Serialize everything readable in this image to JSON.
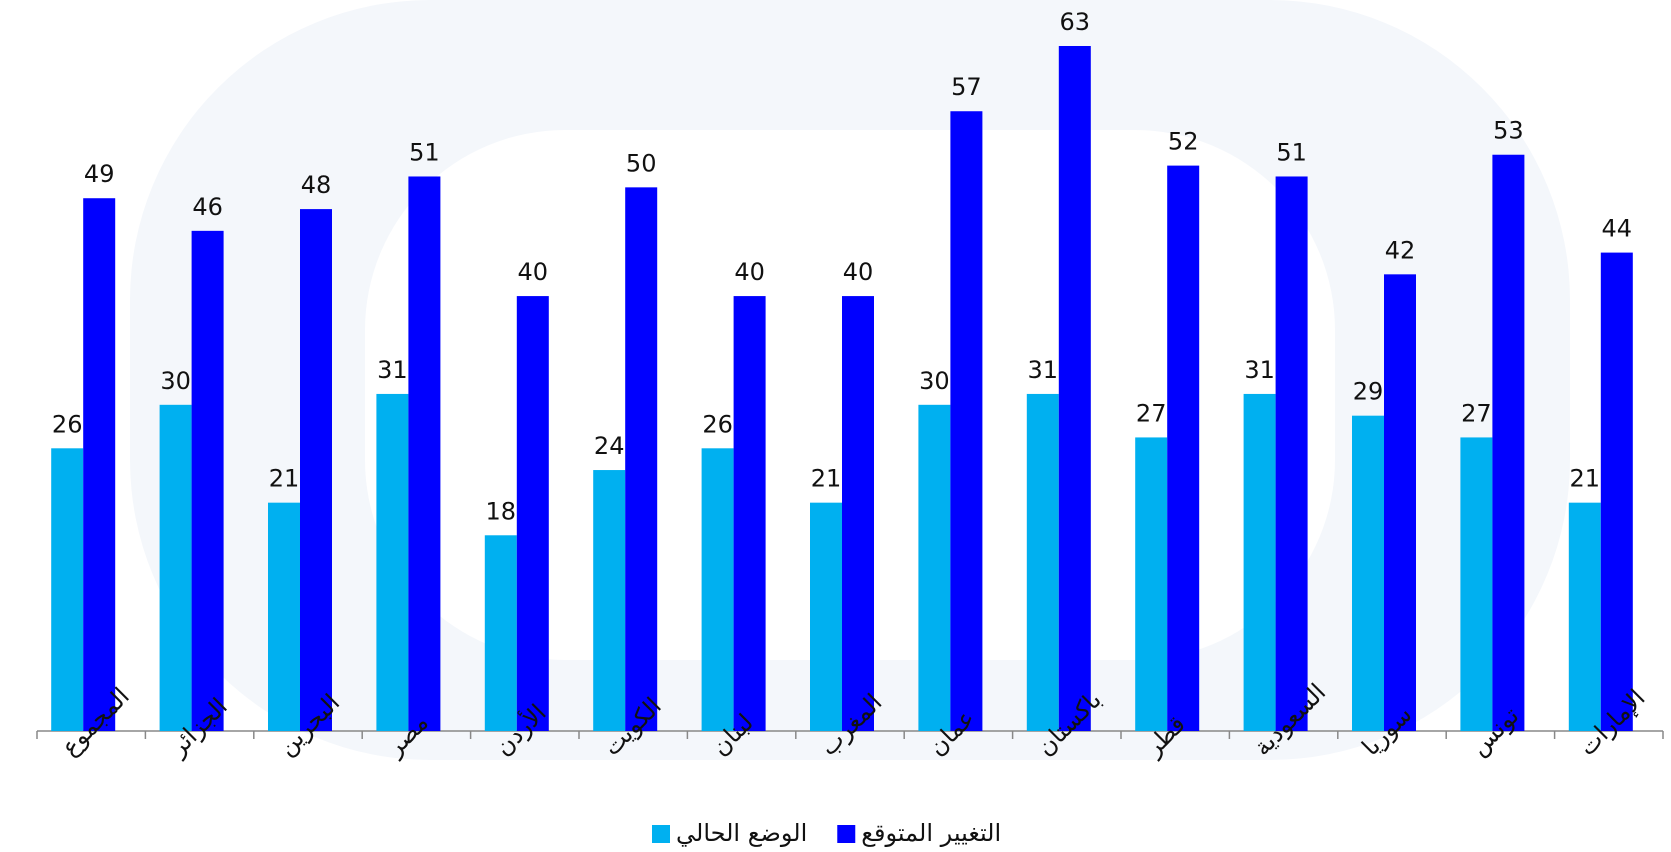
{
  "chart_data": {
    "type": "bar",
    "categories": [
      "المجموع",
      "الجزائر",
      "البحرين",
      "مصر",
      "الأردن",
      "الكويت",
      "لبنان",
      "المغرب",
      "عمان",
      "باكستان",
      "قطر",
      "السعودية",
      "سوريا",
      "تونس",
      "الإمارات"
    ],
    "series": [
      {
        "name": "الوضع الحالي",
        "color": "#00b0f0",
        "values": [
          26,
          30,
          21,
          31,
          18,
          24,
          26,
          21,
          30,
          31,
          27,
          31,
          29,
          27,
          21
        ]
      },
      {
        "name": "التغيير المتوقع",
        "color": "#0000ff",
        "values": [
          49,
          46,
          48,
          51,
          40,
          50,
          40,
          40,
          57,
          63,
          52,
          51,
          42,
          53,
          44
        ]
      }
    ]
  }
}
